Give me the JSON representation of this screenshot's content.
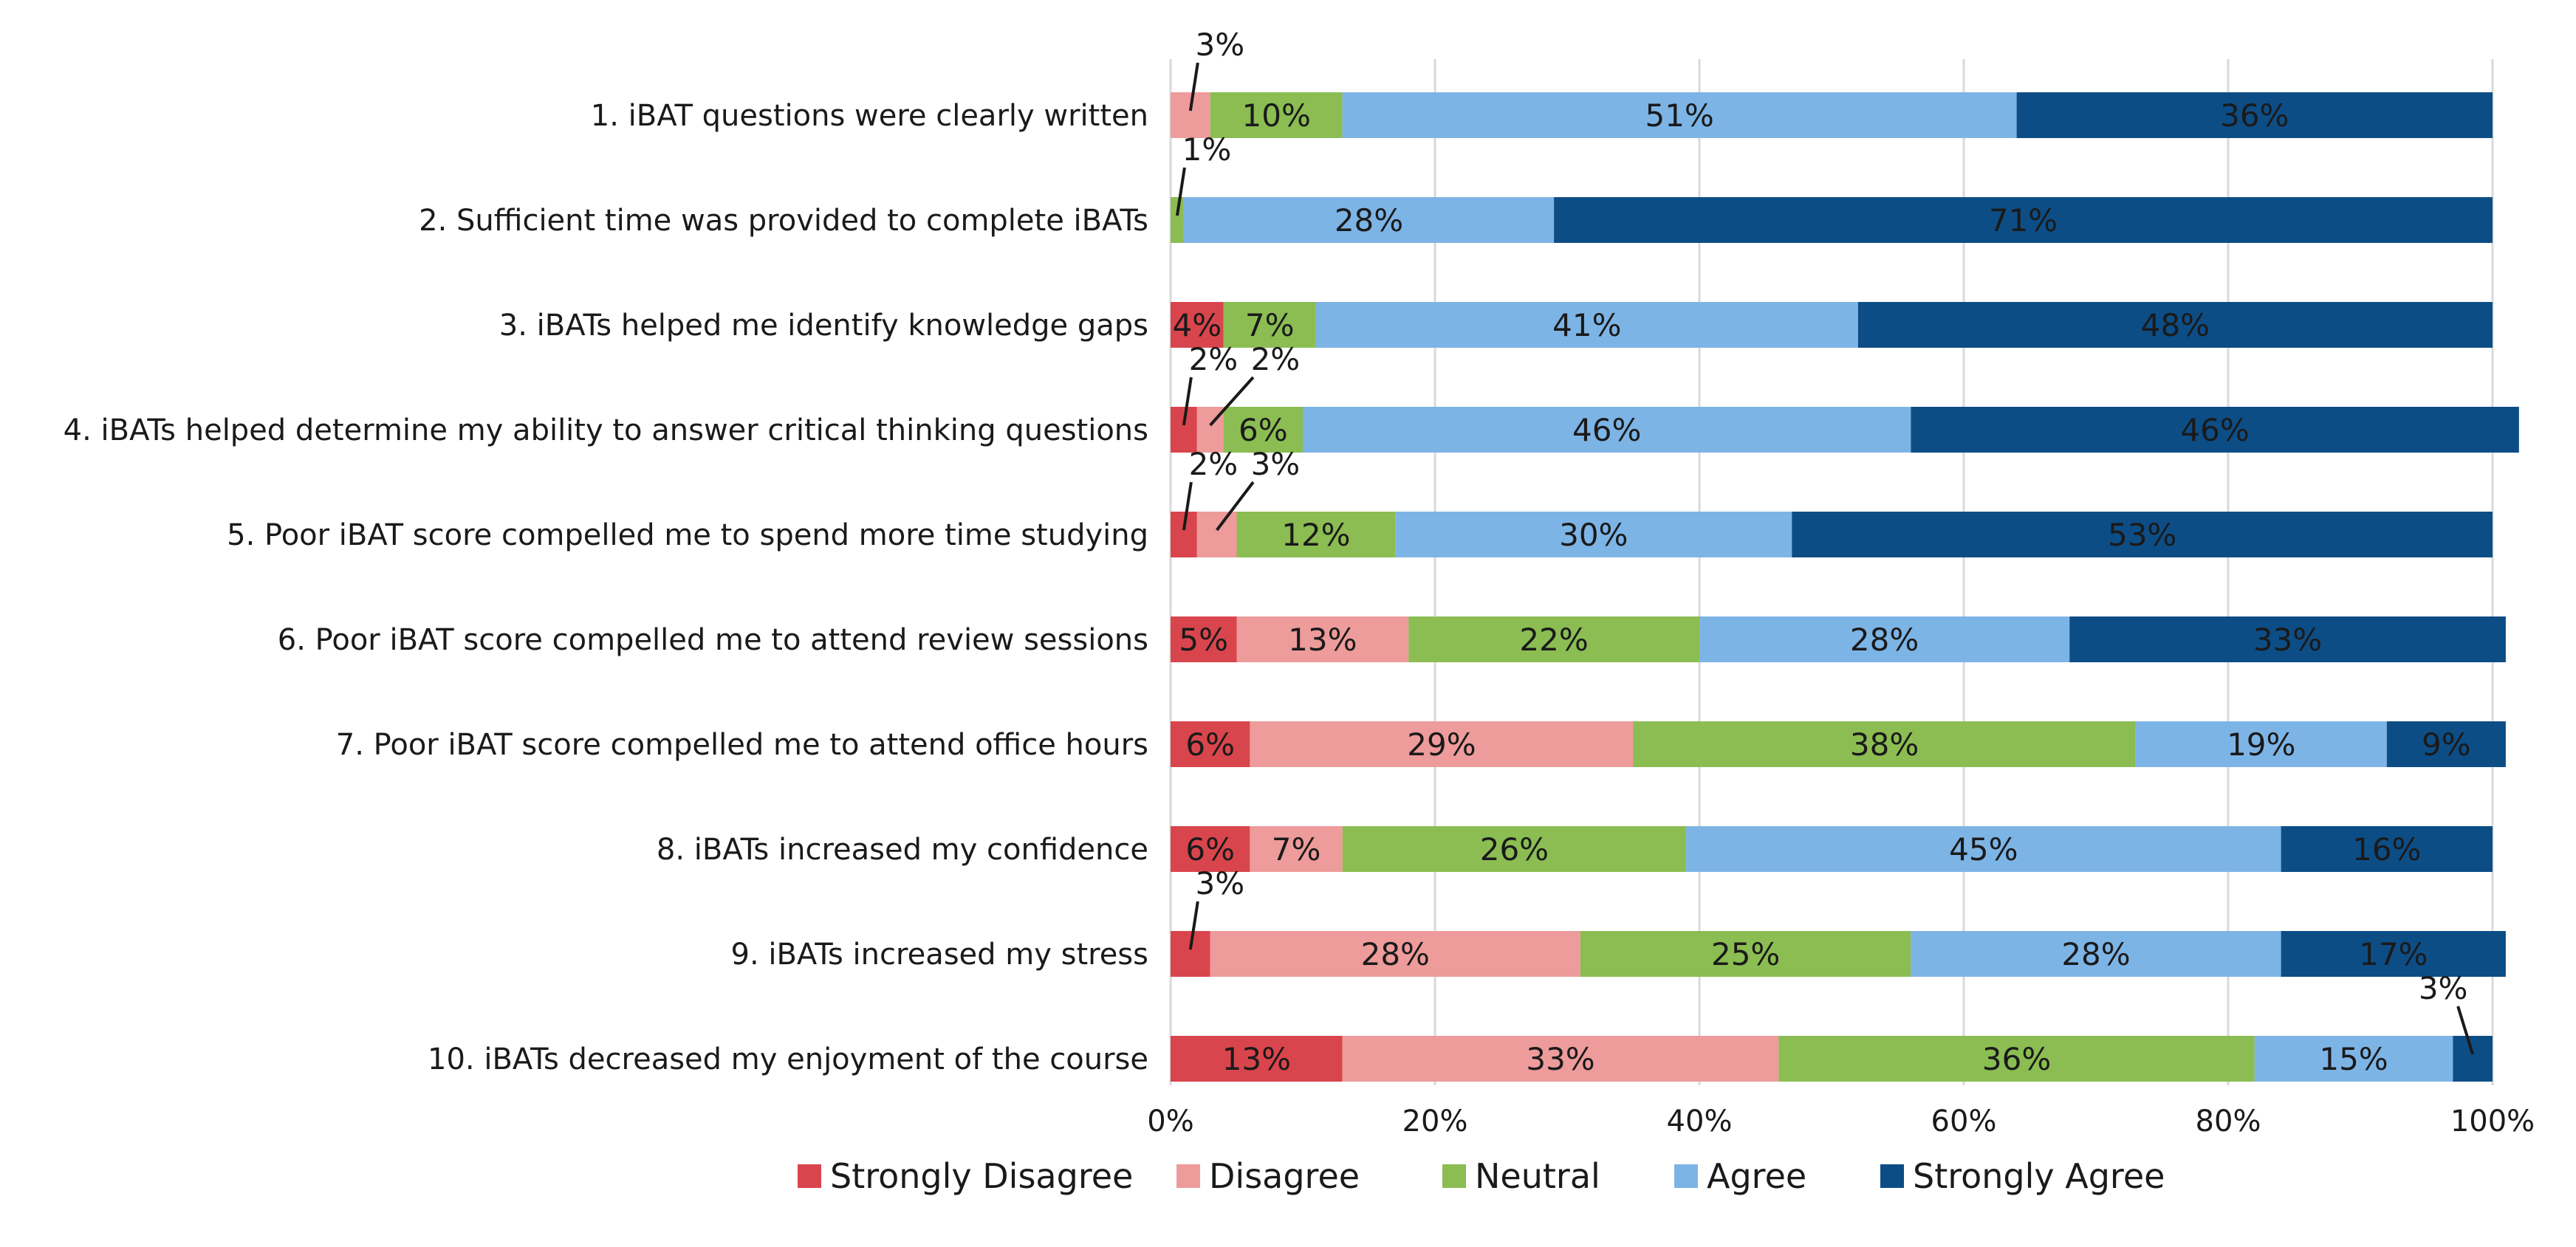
{
  "chart_data": {
    "type": "bar",
    "orientation": "horizontal",
    "stacked": "percent",
    "title": "",
    "xlabel": "",
    "ylabel": "",
    "xlim": [
      0,
      100
    ],
    "x_ticks": [
      "0%",
      "20%",
      "40%",
      "60%",
      "80%",
      "100%"
    ],
    "grid": true,
    "legend_position": "bottom",
    "categories": [
      "1. iBAT questions were clearly written",
      "2. Sufficient time was provided to complete iBATs",
      "3. iBATs helped me identify knowledge gaps",
      "4. iBATs helped determine my ability to answer critical thinking questions",
      "5.  Poor iBAT score compelled me to spend more time studying",
      "6. Poor iBAT score compelled me to attend review sessions",
      "7. Poor iBAT score compelled me to attend office hours",
      "8. iBATs increased my confidence",
      "9. iBATs increased my stress",
      "10. iBATs decreased my enjoyment of the course"
    ],
    "series": [
      {
        "name": "Strongly Disagree",
        "color": "#d9454c",
        "values": [
          0,
          0,
          4,
          2,
          2,
          5,
          6,
          6,
          3,
          13
        ],
        "labels": [
          "",
          "",
          "4%",
          "2%",
          "2%",
          "5%",
          "6%",
          "6%",
          "3%",
          "13%"
        ]
      },
      {
        "name": "Disagree",
        "color": "#ee9b9b",
        "values": [
          3,
          0,
          0,
          2,
          3,
          13,
          29,
          7,
          28,
          33
        ],
        "labels": [
          "3%",
          "",
          "",
          "2%",
          "3%",
          "13%",
          "29%",
          "7%",
          "28%",
          "33%"
        ]
      },
      {
        "name": "Neutral",
        "color": "#8bbd52",
        "values": [
          10,
          1,
          7,
          6,
          12,
          22,
          38,
          26,
          25,
          36
        ],
        "labels": [
          "10%",
          "1%",
          "7%",
          "6%",
          "12%",
          "22%",
          "38%",
          "26%",
          "25%",
          "36%"
        ]
      },
      {
        "name": "Agree",
        "color": "#7db4e6",
        "values": [
          51,
          28,
          41,
          46,
          30,
          28,
          19,
          45,
          28,
          15
        ],
        "labels": [
          "51%",
          "28%",
          "41%",
          "46%",
          "30%",
          "28%",
          "19%",
          "45%",
          "28%",
          "15%"
        ]
      },
      {
        "name": "Strongly Agree",
        "color": "#0d4d86",
        "values": [
          36,
          71,
          48,
          46,
          53,
          33,
          9,
          16,
          17,
          3
        ],
        "labels": [
          "36%",
          "71%",
          "48%",
          "46%",
          "53%",
          "33%",
          "9%",
          "16%",
          "17%",
          "3%"
        ]
      }
    ]
  }
}
